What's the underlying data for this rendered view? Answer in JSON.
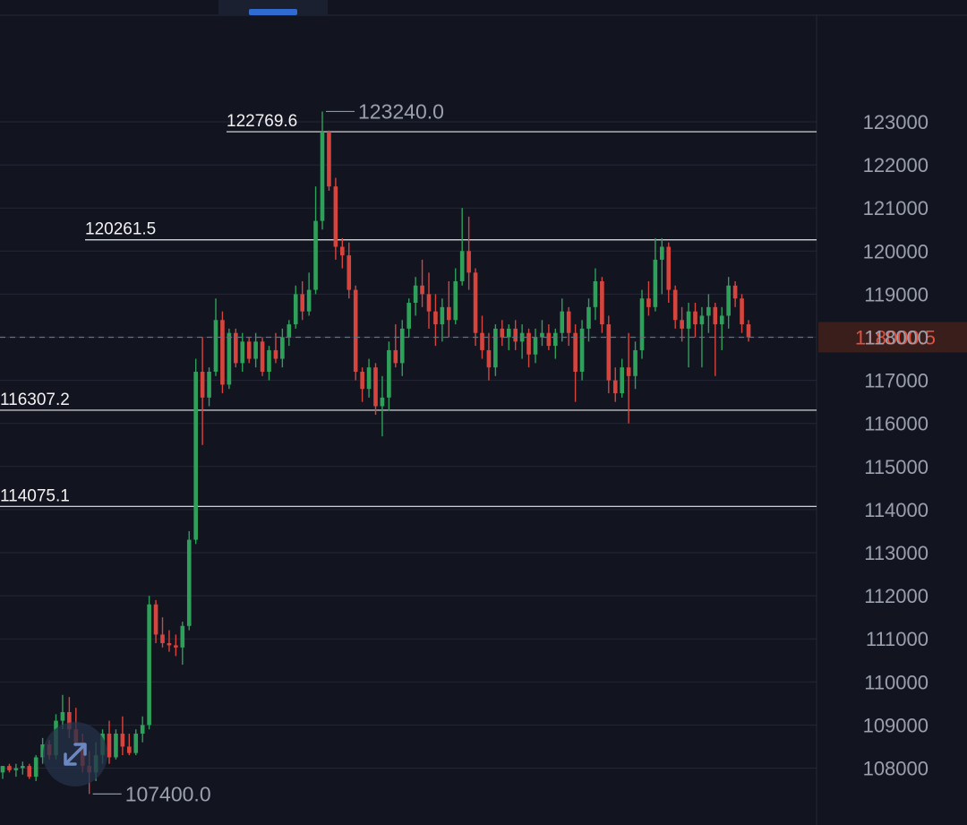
{
  "colors": {
    "background": "#121420",
    "grid": "#242736",
    "up": "#2fa05a",
    "down": "#d6453d",
    "level_line": "#e8e8e8",
    "price_tag_bg": "#3a1e1c",
    "price_tag_text": "#e0513f"
  },
  "chart_data": {
    "type": "candlestick",
    "ylim": [
      107200,
      124200
    ],
    "y_ticks": [
      "123000",
      "122000",
      "121000",
      "120000",
      "119000",
      "118000",
      "117000",
      "116000",
      "115000",
      "114000",
      "113000",
      "112000",
      "111000",
      "110000",
      "109000",
      "108000"
    ],
    "grid": true,
    "current_price": {
      "value": 118000.5,
      "label": "118000.5"
    },
    "levels": [
      {
        "value": 122769.6,
        "label": "122769.6"
      },
      {
        "value": 120261.5,
        "label": "120261.5"
      },
      {
        "value": 116307.2,
        "label": "116307.2"
      },
      {
        "value": 114075.1,
        "label": "114075.1"
      }
    ],
    "extremes": {
      "high": {
        "value": 123240.0,
        "label": "123240.0"
      },
      "low": {
        "value": 107400.0,
        "label": "107400.0"
      }
    },
    "candles": [
      [
        107900,
        108050,
        107750,
        108050
      ],
      [
        108050,
        108100,
        107900,
        107950
      ],
      [
        107950,
        108100,
        107800,
        108000
      ],
      [
        108000,
        108150,
        107850,
        108050
      ],
      [
        108050,
        108100,
        107750,
        107800
      ],
      [
        107800,
        108300,
        107700,
        108250
      ],
      [
        108250,
        108700,
        108100,
        108550
      ],
      [
        108550,
        108650,
        108200,
        108300
      ],
      [
        108300,
        109250,
        108200,
        109100
      ],
      [
        109100,
        109700,
        108900,
        109300
      ],
      [
        109300,
        109650,
        108700,
        108900
      ],
      [
        108900,
        109400,
        108500,
        108600
      ],
      [
        108600,
        108800,
        107900,
        108050
      ],
      [
        108050,
        108400,
        107400,
        107900
      ],
      [
        107900,
        108600,
        107700,
        108300
      ],
      [
        108300,
        108900,
        108100,
        108800
      ],
      [
        108800,
        109100,
        108100,
        108250
      ],
      [
        108250,
        108900,
        108200,
        108800
      ],
      [
        108800,
        109200,
        108300,
        108500
      ],
      [
        108500,
        108800,
        108300,
        108350
      ],
      [
        108350,
        108900,
        108300,
        108800
      ],
      [
        108800,
        109200,
        108600,
        109000
      ],
      [
        109000,
        112000,
        108900,
        111800
      ],
      [
        111800,
        111900,
        110900,
        111100
      ],
      [
        111100,
        111500,
        110800,
        110900
      ],
      [
        110900,
        111200,
        110700,
        110850
      ],
      [
        110850,
        111100,
        110600,
        110800
      ],
      [
        110800,
        111400,
        110400,
        111300
      ],
      [
        111300,
        113500,
        111200,
        113300
      ],
      [
        113300,
        117500,
        113200,
        117200
      ],
      [
        117200,
        118000,
        115500,
        116600
      ],
      [
        116600,
        117300,
        116400,
        117200
      ],
      [
        117200,
        118900,
        117100,
        118400
      ],
      [
        118400,
        118600,
        116700,
        116900
      ],
      [
        116900,
        118200,
        116800,
        118100
      ],
      [
        118100,
        118200,
        117300,
        117400
      ],
      [
        117400,
        118100,
        117200,
        117900
      ],
      [
        117900,
        118000,
        117400,
        117500
      ],
      [
        117500,
        118100,
        117300,
        117900
      ],
      [
        117900,
        118000,
        117100,
        117200
      ],
      [
        117200,
        117800,
        117000,
        117700
      ],
      [
        117700,
        118100,
        117400,
        117500
      ],
      [
        117500,
        118200,
        117300,
        118000
      ],
      [
        118000,
        118400,
        117800,
        118300
      ],
      [
        118300,
        119200,
        118200,
        119000
      ],
      [
        119000,
        119300,
        118400,
        118600
      ],
      [
        118600,
        119500,
        118500,
        119100
      ],
      [
        119100,
        121500,
        119000,
        120700
      ],
      [
        120700,
        123240,
        120500,
        122769.6
      ],
      [
        122769.6,
        122800,
        121400,
        121500
      ],
      [
        121500,
        121700,
        119800,
        120100
      ],
      [
        120100,
        120300,
        119600,
        119900
      ],
      [
        119900,
        120200,
        118900,
        119100
      ],
      [
        119100,
        119200,
        117000,
        117200
      ],
      [
        117200,
        117300,
        116500,
        116800
      ],
      [
        116800,
        117500,
        116600,
        117300
      ],
      [
        117300,
        117400,
        116200,
        116400
      ],
      [
        116400,
        117100,
        115700,
        116600
      ],
      [
        116600,
        117900,
        116300,
        117700
      ],
      [
        117700,
        118300,
        117300,
        117400
      ],
      [
        117400,
        118400,
        117100,
        118200
      ],
      [
        118200,
        118900,
        118000,
        118800
      ],
      [
        118800,
        119400,
        118500,
        119200
      ],
      [
        119200,
        119800,
        118700,
        119000
      ],
      [
        119000,
        119500,
        118200,
        118600
      ],
      [
        118600,
        119000,
        117800,
        118300
      ],
      [
        118300,
        118900,
        117900,
        118700
      ],
      [
        118700,
        119300,
        118000,
        118400
      ],
      [
        118400,
        119600,
        118300,
        119300
      ],
      [
        119300,
        121000,
        119200,
        120000
      ],
      [
        120000,
        120800,
        119100,
        119500
      ],
      [
        119500,
        119600,
        117800,
        118100
      ],
      [
        118100,
        118500,
        117500,
        117700
      ],
      [
        117700,
        118100,
        117000,
        117300
      ],
      [
        117300,
        118300,
        117100,
        118200
      ],
      [
        118200,
        118400,
        117800,
        118000
      ],
      [
        118000,
        118300,
        117700,
        118200
      ],
      [
        118200,
        118400,
        117700,
        117900
      ],
      [
        117900,
        118300,
        117500,
        118100
      ],
      [
        118100,
        118200,
        117300,
        117600
      ],
      [
        117600,
        118200,
        117400,
        118000
      ],
      [
        118000,
        118400,
        117800,
        118100
      ],
      [
        118100,
        118300,
        117700,
        117800
      ],
      [
        117800,
        118200,
        117500,
        118100
      ],
      [
        118100,
        118900,
        117900,
        118600
      ],
      [
        118600,
        118700,
        117800,
        118100
      ],
      [
        118100,
        118300,
        116500,
        117200
      ],
      [
        117200,
        118400,
        117000,
        118200
      ],
      [
        118200,
        118900,
        117900,
        118700
      ],
      [
        118700,
        119600,
        118400,
        119300
      ],
      [
        119300,
        119400,
        118100,
        118300
      ],
      [
        118300,
        118500,
        116700,
        117000
      ],
      [
        117000,
        117300,
        116500,
        116700
      ],
      [
        116700,
        117500,
        116600,
        117300
      ],
      [
        117300,
        118100,
        116000,
        117100
      ],
      [
        117100,
        117900,
        116800,
        117700
      ],
      [
        117700,
        119100,
        117500,
        118900
      ],
      [
        118900,
        119300,
        118500,
        118700
      ],
      [
        118700,
        120300,
        118600,
        119800
      ],
      [
        119800,
        120300,
        119000,
        120100
      ],
      [
        120100,
        120200,
        118800,
        119100
      ],
      [
        119100,
        119200,
        118200,
        118400
      ],
      [
        118400,
        118700,
        117900,
        118200
      ],
      [
        118200,
        118800,
        117300,
        118600
      ],
      [
        118600,
        118800,
        118000,
        118300
      ],
      [
        118300,
        118700,
        117300,
        118500
      ],
      [
        118500,
        119000,
        118100,
        118700
      ],
      [
        118700,
        118800,
        117100,
        118300
      ],
      [
        118300,
        118700,
        117700,
        118500
      ],
      [
        118500,
        119400,
        118200,
        119200
      ],
      [
        119200,
        119300,
        118700,
        118900
      ],
      [
        118900,
        119000,
        118100,
        118300
      ],
      [
        118300,
        118400,
        117900,
        118000
      ]
    ]
  }
}
